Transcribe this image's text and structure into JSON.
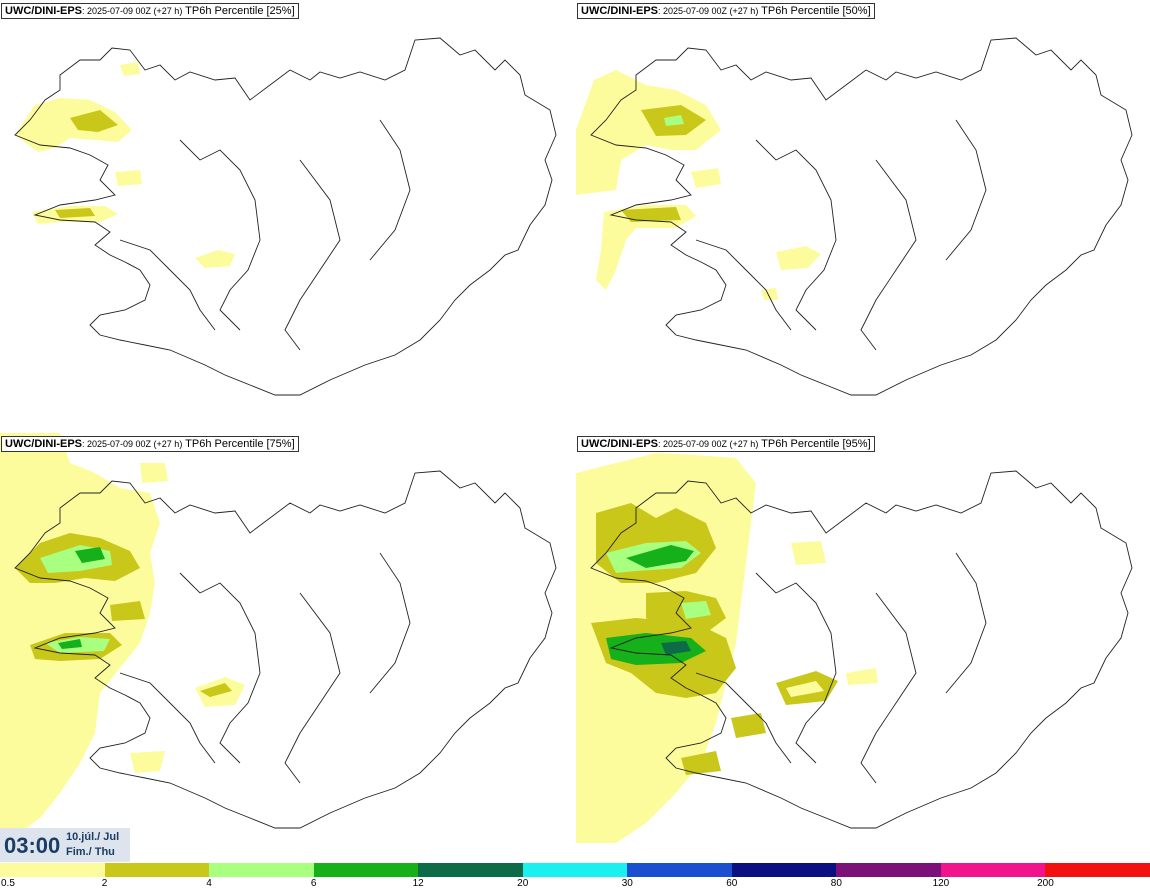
{
  "panels": [
    {
      "source": "UWC/DINI-EPS",
      "run_info": ": 2025-07-09 00Z (+27 h)",
      "variable": " TP6h Percentile [25%]"
    },
    {
      "source": "UWC/DINI-EPS",
      "run_info": ": 2025-07-09 00Z (+27 h)",
      "variable": " TP6h Percentile [50%]"
    },
    {
      "source": "UWC/DINI-EPS",
      "run_info": ": 2025-07-09 00Z (+27 h)",
      "variable": " TP6h Percentile [75%]"
    },
    {
      "source": "UWC/DINI-EPS",
      "run_info": ": 2025-07-09 00Z (+27 h)",
      "variable": " TP6h Percentile [95%]"
    }
  ],
  "valid_time": {
    "time": "03:00",
    "date_line1": "10.júl./ Jul",
    "date_line2": "Fim./ Thu"
  },
  "legend": {
    "labels": [
      "0.5",
      "2",
      "4",
      "6",
      "12",
      "20",
      "30",
      "60",
      "80",
      "120",
      "200"
    ],
    "colors": [
      "#fdfc9c",
      "#c9c71a",
      "#a8ff80",
      "#15b01a",
      "#0e6b47",
      "#1af0f0",
      "#1a4fcf",
      "#0a1080",
      "#7a1078",
      "#f0138c",
      "#f21010"
    ]
  }
}
